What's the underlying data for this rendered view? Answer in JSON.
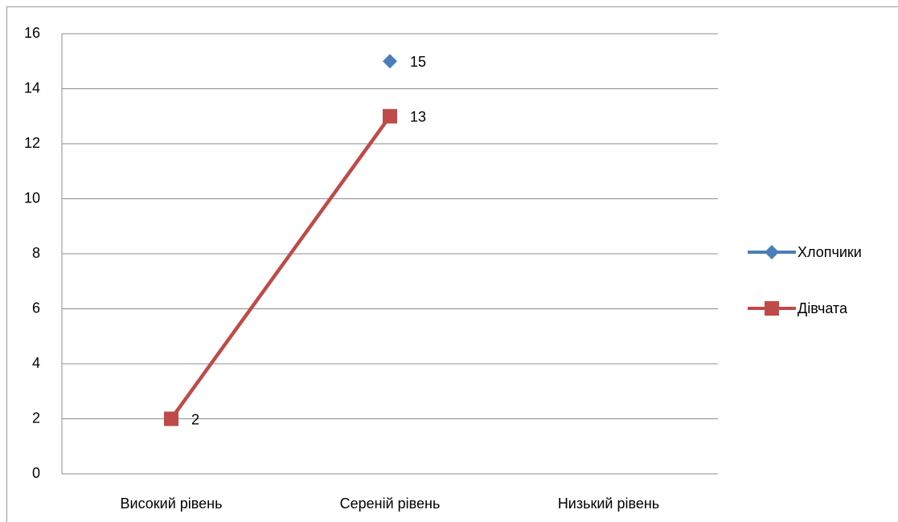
{
  "chart_data": {
    "type": "line",
    "categories": [
      "Високий рівень",
      "Сереній рівень",
      "Низький рівень"
    ],
    "series": [
      {
        "name": "Хлопчики",
        "color": "#4a7ebb",
        "marker": "diamond",
        "values": [
          null,
          15,
          null
        ]
      },
      {
        "name": "Дівчата",
        "color": "#be4b48",
        "marker": "square",
        "values": [
          2,
          13,
          null
        ]
      }
    ],
    "ylim": [
      0,
      16
    ],
    "yticks": [
      0,
      2,
      4,
      6,
      8,
      10,
      12,
      14,
      16
    ],
    "grid": true,
    "legend": "right",
    "data_labels": true
  }
}
